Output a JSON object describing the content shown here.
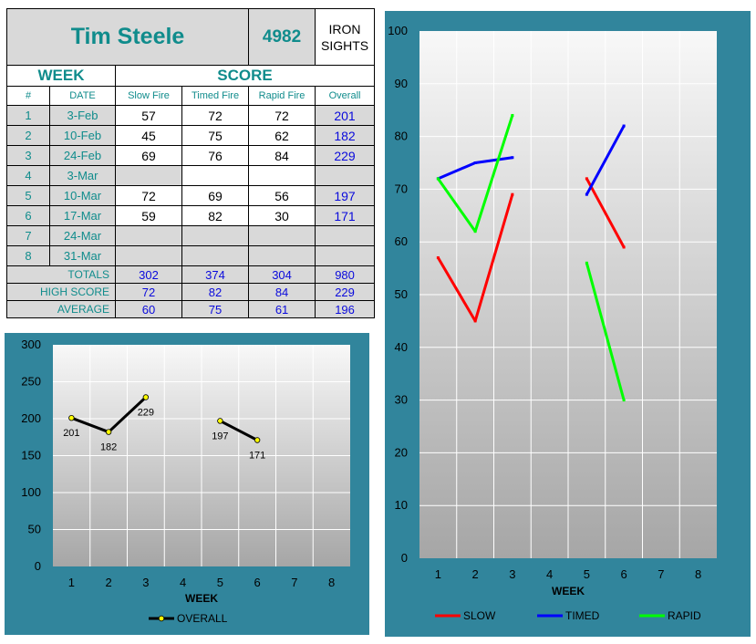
{
  "scorecard": {
    "name": "Tim Steele",
    "number": "4982",
    "sight_line1": "IRON",
    "sight_line2": "SIGHTS",
    "week_header": "WEEK",
    "score_header": "SCORE",
    "columns": [
      "#",
      "DATE",
      "Slow Fire",
      "Timed Fire",
      "Rapid Fire",
      "Overall"
    ],
    "rows": [
      {
        "week": "1",
        "date": "3-Feb",
        "slow": "57",
        "timed": "72",
        "rapid": "72",
        "overall": "201"
      },
      {
        "week": "2",
        "date": "10-Feb",
        "slow": "45",
        "timed": "75",
        "rapid": "62",
        "overall": "182"
      },
      {
        "week": "3",
        "date": "24-Feb",
        "slow": "69",
        "timed": "76",
        "rapid": "84",
        "overall": "229"
      },
      {
        "week": "4",
        "date": "3-Mar",
        "slow": "",
        "timed": "",
        "rapid": "",
        "overall": ""
      },
      {
        "week": "5",
        "date": "10-Mar",
        "slow": "72",
        "timed": "69",
        "rapid": "56",
        "overall": "197"
      },
      {
        "week": "6",
        "date": "17-Mar",
        "slow": "59",
        "timed": "82",
        "rapid": "30",
        "overall": "171"
      },
      {
        "week": "7",
        "date": "24-Mar",
        "slow": "",
        "timed": "",
        "rapid": "",
        "overall": ""
      },
      {
        "week": "8",
        "date": "31-Mar",
        "slow": "",
        "timed": "",
        "rapid": "",
        "overall": ""
      }
    ],
    "summary": [
      {
        "label": "TOTALS",
        "slow": "302",
        "timed": "374",
        "rapid": "304",
        "overall": "980"
      },
      {
        "label": "HIGH SCORE",
        "slow": "72",
        "timed": "82",
        "rapid": "84",
        "overall": "229"
      },
      {
        "label": "AVERAGE",
        "slow": "60",
        "timed": "75",
        "rapid": "61",
        "overall": "196"
      }
    ]
  },
  "chart_data": [
    {
      "type": "line",
      "xlabel": "WEEK",
      "ylabel": "",
      "x": [
        1,
        2,
        3,
        4,
        5,
        6,
        7,
        8
      ],
      "ylim": [
        0,
        300
      ],
      "yticks": [
        0,
        50,
        100,
        150,
        200,
        250,
        300
      ],
      "grid": true,
      "legend": "bottom",
      "data_labels": true,
      "series": [
        {
          "name": "OVERALL",
          "color": "#000000",
          "marker_color": "#ffff00",
          "values": [
            201,
            182,
            229,
            null,
            197,
            171,
            null,
            null
          ]
        }
      ]
    },
    {
      "type": "line",
      "xlabel": "WEEK",
      "ylabel": "",
      "x": [
        1,
        2,
        3,
        4,
        5,
        6,
        7,
        8
      ],
      "ylim": [
        0,
        100
      ],
      "yticks": [
        0,
        10,
        20,
        30,
        40,
        50,
        60,
        70,
        80,
        90,
        100
      ],
      "grid": true,
      "legend": "bottom",
      "series": [
        {
          "name": "SLOW",
          "color": "#ff0000",
          "values": [
            57,
            45,
            69,
            null,
            72,
            59,
            null,
            null
          ]
        },
        {
          "name": "TIMED",
          "color": "#0000ff",
          "values": [
            72,
            75,
            76,
            null,
            69,
            82,
            null,
            null
          ]
        },
        {
          "name": "RAPID",
          "color": "#00ff00",
          "values": [
            72,
            62,
            84,
            null,
            56,
            30,
            null,
            null
          ]
        }
      ]
    }
  ]
}
